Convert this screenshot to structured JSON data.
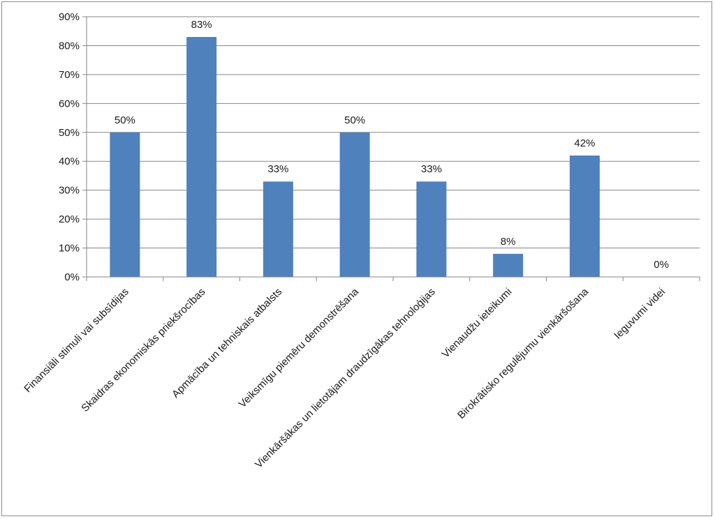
{
  "chart_data": {
    "type": "bar",
    "title": "",
    "xlabel": "",
    "ylabel": "",
    "categories": [
      "Finansiāli stimuli vai subsīdijas",
      "Skaidras ekonomiskās priekšrocības",
      "Apmācība un tehniskais atbalsts",
      "Veiksmīgu piemēru demonstrēšana",
      "Vienkāršākas un lietotājam draudzīgākas tehnoloģijas",
      "Vienaudžu ieteikumi",
      "Birokrātisko regulējumu vienkāršošana",
      "Ieguvumi videi"
    ],
    "values": [
      50,
      83,
      33,
      50,
      33,
      8,
      42,
      0
    ],
    "data_labels": [
      "50%",
      "83%",
      "33%",
      "50%",
      "33%",
      "8%",
      "42%",
      "0%"
    ],
    "ylim": [
      0,
      90
    ],
    "y_ticks": [
      0,
      10,
      20,
      30,
      40,
      50,
      60,
      70,
      80,
      90
    ],
    "y_tick_labels": [
      "0%",
      "10%",
      "20%",
      "30%",
      "40%",
      "50%",
      "60%",
      "70%",
      "80%",
      "90%"
    ],
    "grid": true,
    "legend": "none",
    "colors": {
      "bar": "#4F81BD",
      "grid": "#868686",
      "axis": "#868686",
      "text": "#1a1a1a"
    }
  }
}
